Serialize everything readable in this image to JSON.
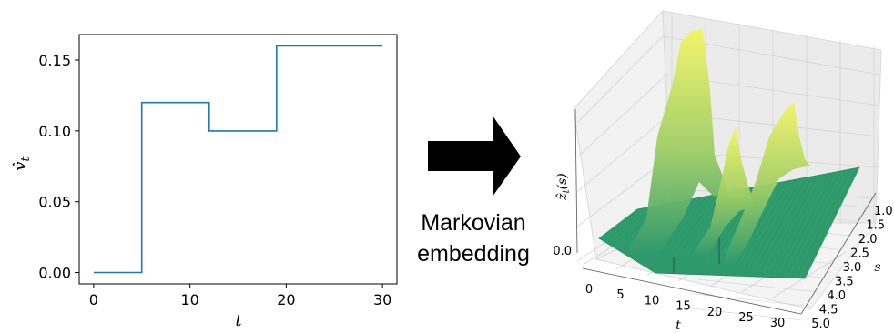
{
  "chart_data": [
    {
      "type": "line",
      "drawstyle": "steps-post",
      "x": [
        0,
        5,
        12,
        19,
        30
      ],
      "y": [
        0.0,
        0.12,
        0.1,
        0.16,
        0.16
      ],
      "xlabel": "t",
      "ylabel": "v̂_t",
      "xlim": [
        -1.5,
        31.5
      ],
      "ylim": [
        -0.008,
        0.168
      ],
      "xticks": [
        0,
        10,
        20,
        30
      ],
      "yticks": [
        0.0,
        0.05,
        0.1,
        0.15
      ],
      "xtick_labels": [
        "0",
        "10",
        "20",
        "30"
      ],
      "ytick_labels": [
        "0.00",
        "0.05",
        "0.10",
        "0.15"
      ],
      "line_color": "#1f77b4",
      "grid": false
    },
    {
      "type": "surface3d",
      "xlabel": "t",
      "ylabel": "s",
      "zlabel": "ẑ_t(s)",
      "t_ticks": [
        "0",
        "5",
        "10",
        "15",
        "20",
        "25",
        "30"
      ],
      "s_ticks": [
        "1.0",
        "1.5",
        "2.0",
        "2.5",
        "3.0",
        "3.5",
        "4.0",
        "4.5",
        "5.0"
      ],
      "z_ticks": [
        "0.0"
      ],
      "colormap": "summer",
      "spike_times": [
        5,
        12,
        19
      ],
      "grid": true
    }
  ],
  "arrow": {
    "label_line1": "Markovian",
    "label_line2": "embedding"
  }
}
